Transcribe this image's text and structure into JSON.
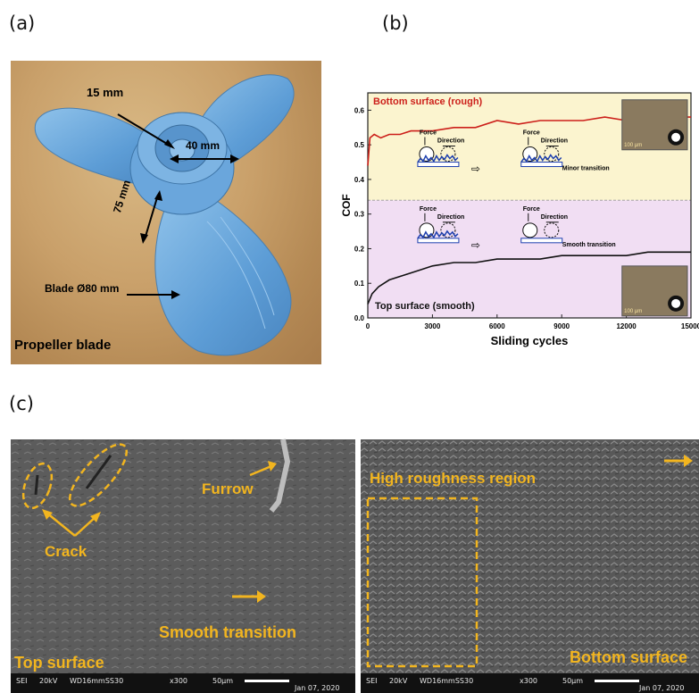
{
  "panels": {
    "a": {
      "label": "(a)",
      "dim_15": "15 mm",
      "dim_40": "40 mm",
      "dim_75": "75 mm",
      "blade_dim": "Blade Ø80 mm",
      "caption": "Propeller blade"
    },
    "b": {
      "label": "(b)"
    },
    "c": {
      "label": "(c)",
      "left": {
        "crack": "Crack",
        "furrow": "Furrow",
        "smooth": "Smooth transition",
        "surface": "Top surface",
        "meta_sei": "SEI",
        "meta_kv": "20kV",
        "meta_wd": "WD16mmSS30",
        "meta_mag": "x300",
        "meta_scale": "50μm",
        "meta_date": "Jan 07, 2020"
      },
      "right": {
        "region": "High roughness region",
        "surface": "Bottom surface",
        "meta_sei": "SEI",
        "meta_kv": "20kV",
        "meta_wd": "WD16mmSS30",
        "meta_mag": "x300",
        "meta_scale": "50μm",
        "meta_date": "Jan 07, 2020"
      }
    }
  },
  "chart_data": {
    "type": "line",
    "xlabel": "Sliding cycles",
    "ylabel": "COF",
    "xlim": [
      0,
      15000
    ],
    "ylim": [
      0.0,
      0.65
    ],
    "xticks": [
      0,
      3000,
      6000,
      9000,
      12000,
      15000
    ],
    "yticks": [
      0.0,
      0.1,
      0.2,
      0.3,
      0.4,
      0.5,
      0.6
    ],
    "region_split": 0.34,
    "colors": {
      "bottom": "#cc1f1a",
      "top": "#111111",
      "upper_bg": "#fbf4cf",
      "lower_bg": "#f1def3"
    },
    "series": [
      {
        "name": "Bottom surface (rough)",
        "x": [
          0,
          100,
          300,
          600,
          1000,
          1500,
          2000,
          3000,
          4000,
          5000,
          6000,
          7000,
          8000,
          9000,
          10000,
          11000,
          12000,
          13000,
          14000,
          15000
        ],
        "y": [
          0.44,
          0.52,
          0.53,
          0.52,
          0.53,
          0.53,
          0.54,
          0.54,
          0.55,
          0.55,
          0.57,
          0.56,
          0.57,
          0.57,
          0.57,
          0.58,
          0.57,
          0.58,
          0.58,
          0.58
        ]
      },
      {
        "name": "Top surface (smooth)",
        "x": [
          0,
          200,
          500,
          1000,
          1500,
          2000,
          2500,
          3000,
          4000,
          5000,
          6000,
          7000,
          8000,
          9000,
          10000,
          11000,
          12000,
          13000,
          14000,
          15000
        ],
        "y": [
          0.04,
          0.07,
          0.09,
          0.11,
          0.12,
          0.13,
          0.14,
          0.15,
          0.16,
          0.16,
          0.17,
          0.17,
          0.17,
          0.18,
          0.18,
          0.18,
          0.18,
          0.19,
          0.19,
          0.19
        ]
      }
    ],
    "annotations": {
      "force": "Force",
      "direction": "Direction",
      "minor": "Minor transition",
      "smooth": "Smooth transition",
      "scale": "100 μm"
    }
  }
}
